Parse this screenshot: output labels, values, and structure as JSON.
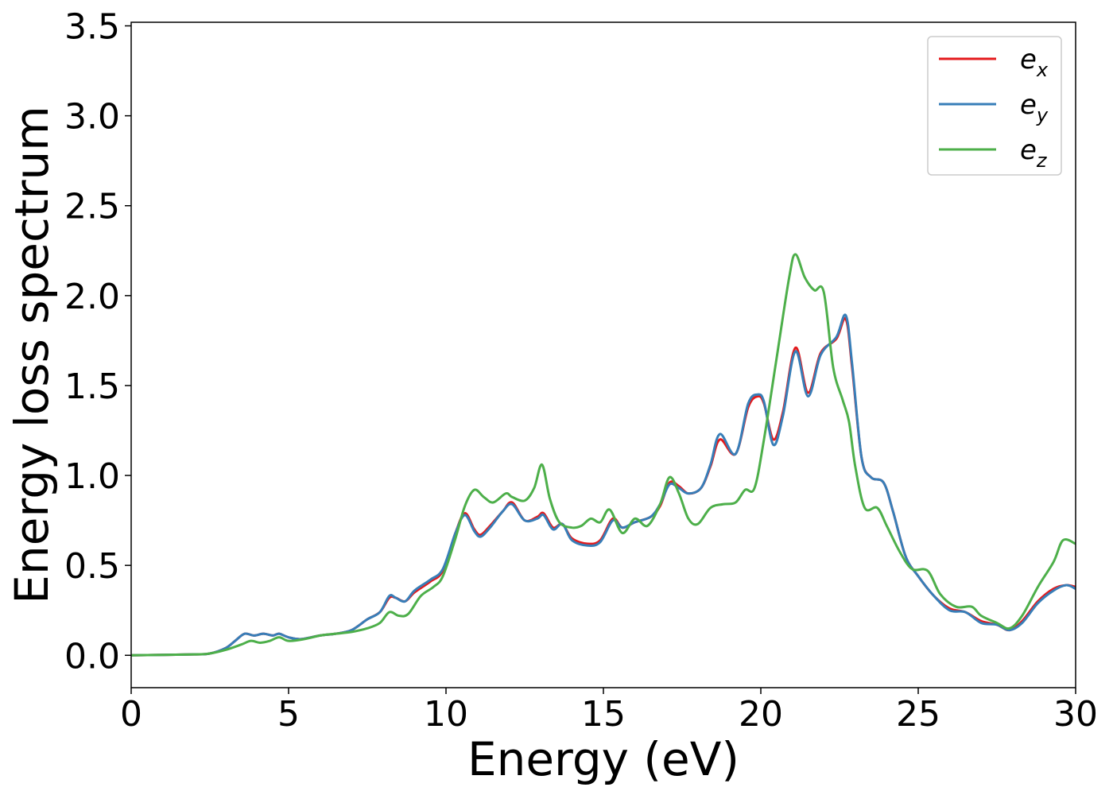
{
  "chart_data": {
    "type": "line",
    "xlabel": "Energy (eV)",
    "ylabel": "Energy loss spectrum",
    "xlim": [
      0,
      30
    ],
    "ylim": [
      -0.18,
      3.52
    ],
    "xticks": [
      0,
      5,
      10,
      15,
      20,
      25,
      30
    ],
    "yticks": [
      0.0,
      0.5,
      1.0,
      1.5,
      2.0,
      2.5,
      3.0,
      3.5
    ],
    "xtick_labels": [
      "0",
      "5",
      "10",
      "15",
      "20",
      "25",
      "30"
    ],
    "ytick_labels": [
      "0.0",
      "0.5",
      "1.0",
      "1.5",
      "2.0",
      "2.5",
      "3.0",
      "3.5"
    ],
    "grid": false,
    "legend_position": "top-right",
    "series": [
      {
        "name": "e",
        "subscript": "x",
        "color": "#e41a1c",
        "points": [
          [
            0,
            0.0
          ],
          [
            2.0,
            0.005
          ],
          [
            2.5,
            0.01
          ],
          [
            3.0,
            0.04
          ],
          [
            3.3,
            0.08
          ],
          [
            3.6,
            0.12
          ],
          [
            3.9,
            0.11
          ],
          [
            4.2,
            0.12
          ],
          [
            4.5,
            0.11
          ],
          [
            4.7,
            0.12
          ],
          [
            5.0,
            0.1
          ],
          [
            5.4,
            0.09
          ],
          [
            6.0,
            0.11
          ],
          [
            6.5,
            0.12
          ],
          [
            7.0,
            0.14
          ],
          [
            7.5,
            0.2
          ],
          [
            7.9,
            0.24
          ],
          [
            8.2,
            0.32
          ],
          [
            8.4,
            0.32
          ],
          [
            8.7,
            0.3
          ],
          [
            9.0,
            0.35
          ],
          [
            9.5,
            0.41
          ],
          [
            9.9,
            0.47
          ],
          [
            10.3,
            0.68
          ],
          [
            10.6,
            0.79
          ],
          [
            10.9,
            0.7
          ],
          [
            11.1,
            0.67
          ],
          [
            11.4,
            0.72
          ],
          [
            11.8,
            0.8
          ],
          [
            12.1,
            0.85
          ],
          [
            12.5,
            0.75
          ],
          [
            12.9,
            0.77
          ],
          [
            13.1,
            0.79
          ],
          [
            13.4,
            0.71
          ],
          [
            13.7,
            0.73
          ],
          [
            14.0,
            0.65
          ],
          [
            14.5,
            0.62
          ],
          [
            14.9,
            0.64
          ],
          [
            15.3,
            0.76
          ],
          [
            15.6,
            0.71
          ],
          [
            16.0,
            0.74
          ],
          [
            16.5,
            0.77
          ],
          [
            16.8,
            0.83
          ],
          [
            17.1,
            0.96
          ],
          [
            17.4,
            0.94
          ],
          [
            17.7,
            0.9
          ],
          [
            18.1,
            0.93
          ],
          [
            18.4,
            1.05
          ],
          [
            18.7,
            1.2
          ],
          [
            19.2,
            1.12
          ],
          [
            19.6,
            1.38
          ],
          [
            19.9,
            1.44
          ],
          [
            20.1,
            1.4
          ],
          [
            20.4,
            1.2
          ],
          [
            20.7,
            1.35
          ],
          [
            21.1,
            1.71
          ],
          [
            21.5,
            1.46
          ],
          [
            21.9,
            1.68
          ],
          [
            22.4,
            1.76
          ],
          [
            22.7,
            1.87
          ],
          [
            22.9,
            1.6
          ],
          [
            23.2,
            1.1
          ],
          [
            23.5,
            0.99
          ],
          [
            23.9,
            0.96
          ],
          [
            24.2,
            0.8
          ],
          [
            24.6,
            0.55
          ],
          [
            25.0,
            0.44
          ],
          [
            25.5,
            0.33
          ],
          [
            26.0,
            0.26
          ],
          [
            26.5,
            0.24
          ],
          [
            27.0,
            0.19
          ],
          [
            27.5,
            0.17
          ],
          [
            27.9,
            0.14
          ],
          [
            28.3,
            0.19
          ],
          [
            28.8,
            0.3
          ],
          [
            29.3,
            0.37
          ],
          [
            29.7,
            0.39
          ],
          [
            30.0,
            0.38
          ]
        ]
      },
      {
        "name": "e",
        "subscript": "y",
        "color": "#377eb8",
        "points": [
          [
            0,
            0.0
          ],
          [
            2.0,
            0.005
          ],
          [
            2.5,
            0.01
          ],
          [
            3.0,
            0.04
          ],
          [
            3.3,
            0.08
          ],
          [
            3.6,
            0.12
          ],
          [
            3.9,
            0.11
          ],
          [
            4.2,
            0.12
          ],
          [
            4.5,
            0.11
          ],
          [
            4.7,
            0.12
          ],
          [
            5.0,
            0.1
          ],
          [
            5.4,
            0.09
          ],
          [
            6.0,
            0.11
          ],
          [
            6.5,
            0.12
          ],
          [
            7.0,
            0.14
          ],
          [
            7.5,
            0.2
          ],
          [
            7.9,
            0.24
          ],
          [
            8.2,
            0.33
          ],
          [
            8.4,
            0.32
          ],
          [
            8.7,
            0.3
          ],
          [
            9.0,
            0.36
          ],
          [
            9.5,
            0.42
          ],
          [
            9.9,
            0.48
          ],
          [
            10.3,
            0.68
          ],
          [
            10.6,
            0.78
          ],
          [
            10.9,
            0.69
          ],
          [
            11.1,
            0.66
          ],
          [
            11.4,
            0.71
          ],
          [
            11.8,
            0.8
          ],
          [
            12.1,
            0.84
          ],
          [
            12.5,
            0.75
          ],
          [
            12.9,
            0.76
          ],
          [
            13.1,
            0.78
          ],
          [
            13.4,
            0.7
          ],
          [
            13.7,
            0.73
          ],
          [
            14.0,
            0.64
          ],
          [
            14.5,
            0.61
          ],
          [
            14.9,
            0.63
          ],
          [
            15.3,
            0.75
          ],
          [
            15.6,
            0.71
          ],
          [
            16.0,
            0.74
          ],
          [
            16.5,
            0.77
          ],
          [
            16.8,
            0.84
          ],
          [
            17.1,
            0.95
          ],
          [
            17.4,
            0.93
          ],
          [
            17.7,
            0.9
          ],
          [
            18.1,
            0.93
          ],
          [
            18.4,
            1.06
          ],
          [
            18.7,
            1.23
          ],
          [
            19.2,
            1.12
          ],
          [
            19.6,
            1.4
          ],
          [
            19.9,
            1.45
          ],
          [
            20.1,
            1.41
          ],
          [
            20.4,
            1.17
          ],
          [
            20.7,
            1.33
          ],
          [
            21.1,
            1.69
          ],
          [
            21.5,
            1.44
          ],
          [
            21.9,
            1.67
          ],
          [
            22.4,
            1.77
          ],
          [
            22.7,
            1.89
          ],
          [
            22.9,
            1.62
          ],
          [
            23.2,
            1.1
          ],
          [
            23.5,
            0.99
          ],
          [
            23.9,
            0.96
          ],
          [
            24.2,
            0.8
          ],
          [
            24.6,
            0.55
          ],
          [
            25.0,
            0.44
          ],
          [
            25.5,
            0.33
          ],
          [
            26.0,
            0.25
          ],
          [
            26.5,
            0.24
          ],
          [
            27.0,
            0.18
          ],
          [
            27.5,
            0.17
          ],
          [
            27.9,
            0.14
          ],
          [
            28.3,
            0.18
          ],
          [
            28.8,
            0.29
          ],
          [
            29.3,
            0.36
          ],
          [
            29.7,
            0.39
          ],
          [
            30.0,
            0.37
          ]
        ]
      },
      {
        "name": "e",
        "subscript": "z",
        "color": "#4daf4a",
        "points": [
          [
            0,
            0.0
          ],
          [
            2.0,
            0.005
          ],
          [
            2.5,
            0.01
          ],
          [
            3.0,
            0.03
          ],
          [
            3.5,
            0.06
          ],
          [
            3.8,
            0.08
          ],
          [
            4.1,
            0.07
          ],
          [
            4.4,
            0.08
          ],
          [
            4.7,
            0.1
          ],
          [
            5.0,
            0.08
          ],
          [
            5.5,
            0.09
          ],
          [
            6.0,
            0.11
          ],
          [
            6.5,
            0.12
          ],
          [
            7.0,
            0.13
          ],
          [
            7.5,
            0.15
          ],
          [
            7.9,
            0.18
          ],
          [
            8.2,
            0.24
          ],
          [
            8.5,
            0.22
          ],
          [
            8.8,
            0.23
          ],
          [
            9.2,
            0.33
          ],
          [
            9.6,
            0.38
          ],
          [
            9.9,
            0.44
          ],
          [
            10.3,
            0.65
          ],
          [
            10.6,
            0.83
          ],
          [
            10.9,
            0.92
          ],
          [
            11.2,
            0.88
          ],
          [
            11.5,
            0.85
          ],
          [
            11.9,
            0.9
          ],
          [
            12.1,
            0.88
          ],
          [
            12.5,
            0.86
          ],
          [
            12.8,
            0.93
          ],
          [
            13.05,
            1.06
          ],
          [
            13.3,
            0.87
          ],
          [
            13.6,
            0.74
          ],
          [
            14.0,
            0.71
          ],
          [
            14.3,
            0.72
          ],
          [
            14.6,
            0.76
          ],
          [
            14.9,
            0.74
          ],
          [
            15.2,
            0.81
          ],
          [
            15.6,
            0.68
          ],
          [
            16.0,
            0.76
          ],
          [
            16.4,
            0.72
          ],
          [
            16.8,
            0.84
          ],
          [
            17.1,
            0.99
          ],
          [
            17.4,
            0.9
          ],
          [
            17.7,
            0.76
          ],
          [
            18.0,
            0.73
          ],
          [
            18.4,
            0.82
          ],
          [
            18.8,
            0.84
          ],
          [
            19.2,
            0.85
          ],
          [
            19.5,
            0.92
          ],
          [
            19.8,
            0.93
          ],
          [
            20.1,
            1.2
          ],
          [
            20.5,
            1.65
          ],
          [
            20.9,
            2.1
          ],
          [
            21.1,
            2.23
          ],
          [
            21.4,
            2.1
          ],
          [
            21.7,
            2.03
          ],
          [
            22.0,
            2.02
          ],
          [
            22.3,
            1.6
          ],
          [
            22.6,
            1.42
          ],
          [
            22.8,
            1.3
          ],
          [
            23.0,
            1.05
          ],
          [
            23.3,
            0.82
          ],
          [
            23.7,
            0.82
          ],
          [
            24.0,
            0.72
          ],
          [
            24.4,
            0.58
          ],
          [
            24.8,
            0.48
          ],
          [
            25.3,
            0.47
          ],
          [
            25.7,
            0.34
          ],
          [
            26.2,
            0.27
          ],
          [
            26.7,
            0.27
          ],
          [
            27.0,
            0.22
          ],
          [
            27.5,
            0.18
          ],
          [
            27.9,
            0.15
          ],
          [
            28.3,
            0.22
          ],
          [
            28.8,
            0.38
          ],
          [
            29.3,
            0.52
          ],
          [
            29.6,
            0.64
          ],
          [
            30.0,
            0.62
          ]
        ]
      }
    ]
  }
}
